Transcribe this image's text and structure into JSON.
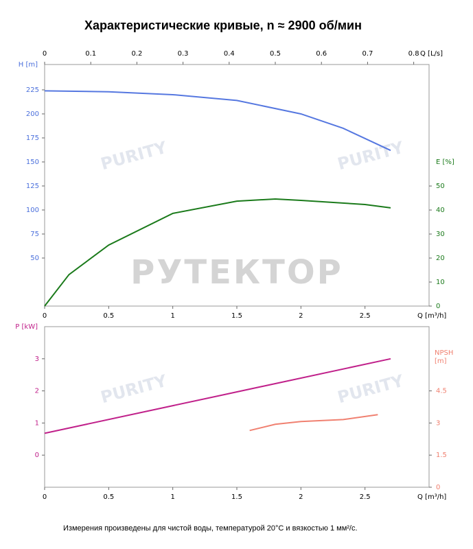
{
  "title": "Характеристические кривые, n ≈ 2900 об/мин",
  "note": "Измерения произведены для чистой воды, температурой 20°C и вязкостью 1 мм²/с.",
  "watermark": "РУТЕКТОР",
  "watermark_small": "PURITY",
  "chart_data": [
    {
      "type": "line",
      "xlabel": "Q [m³/h]",
      "xlim": [
        0,
        3
      ],
      "xticks": [
        0,
        0.5,
        1,
        1.5,
        2,
        2.5
      ],
      "x2label": "Q [L/s]",
      "x2lim": [
        0,
        0.8333
      ],
      "x2ticks": [
        0,
        0.1,
        0.2,
        0.3,
        0.4,
        0.5,
        0.6,
        0.7,
        0.8
      ],
      "ylabel": "H [m]",
      "ylim": [
        0,
        251.4
      ],
      "yticks": [
        50,
        75,
        100,
        125,
        150,
        175,
        200,
        225
      ],
      "ycolor": "#4a6fdc",
      "y2label": "E [%]",
      "y2lim": [
        0,
        100.6
      ],
      "y2ticks": [
        0,
        10,
        20,
        30,
        40,
        50
      ],
      "y2color": "#1a7a1a",
      "series": [
        {
          "color": "#5577e0",
          "axis": "y",
          "x": [
            0,
            0.5,
            1,
            1.5,
            2,
            2.33,
            2.7
          ],
          "values": [
            224,
            223,
            220,
            214,
            200,
            185,
            162
          ]
        },
        {
          "color": "#1a7a1a",
          "axis": "y2",
          "x": [
            0,
            0.19,
            0.5,
            1,
            1.5,
            1.8,
            2,
            2.5,
            2.7
          ],
          "values": [
            0,
            13.1,
            25.4,
            38.6,
            43.7,
            44.6,
            44,
            42.3,
            40.9
          ]
        }
      ]
    },
    {
      "type": "line",
      "xlabel": "Q [m³/h]",
      "xlim": [
        0,
        3
      ],
      "xticks": [
        0,
        0.5,
        1,
        1.5,
        2,
        2.5
      ],
      "ylabel": "P [kW]",
      "ylim": [
        -1,
        4
      ],
      "yticks": [
        0,
        1,
        2,
        3
      ],
      "ycolor": "#c0208a",
      "y2label": "NPSH [m]",
      "y2lim": [
        0,
        7.5
      ],
      "y2ticks": [
        0,
        1.5,
        3,
        4.5
      ],
      "y2color": "#f08070",
      "series": [
        {
          "color": "#c0208a",
          "axis": "y",
          "x": [
            0,
            1.35,
            2.7
          ],
          "values": [
            0.68,
            1.84,
            3.0
          ]
        },
        {
          "color": "#f08070",
          "axis": "y2",
          "x": [
            1.6,
            1.8,
            2,
            2.33,
            2.6
          ],
          "values": [
            2.65,
            2.94,
            3.07,
            3.16,
            3.39
          ]
        }
      ]
    }
  ]
}
